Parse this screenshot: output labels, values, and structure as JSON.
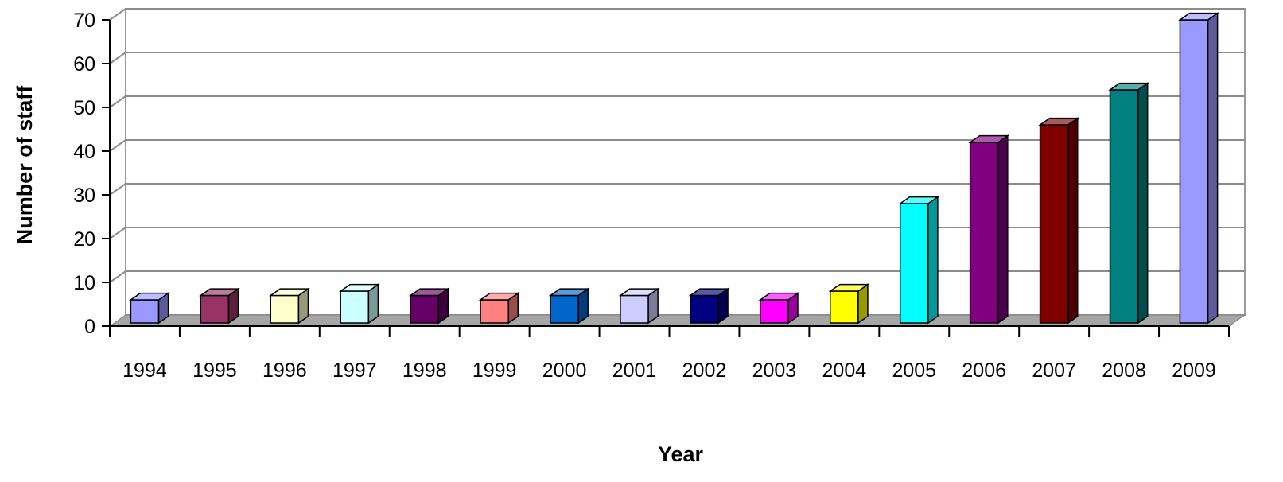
{
  "chart_data": {
    "type": "bar",
    "title": "",
    "xlabel": "Year",
    "ylabel": "Number of staff",
    "categories": [
      "1994",
      "1995",
      "1996",
      "1997",
      "1998",
      "1999",
      "2000",
      "2001",
      "2002",
      "2003",
      "2004",
      "2005",
      "2006",
      "2007",
      "2008",
      "2009"
    ],
    "values": [
      6,
      7,
      7,
      8,
      7,
      6,
      7,
      7,
      7,
      6,
      8,
      28,
      42,
      46,
      54,
      70
    ],
    "colors": [
      "#9999ff",
      "#993366",
      "#ffffcc",
      "#ccffff",
      "#660066",
      "#ff8080",
      "#0066cc",
      "#ccccff",
      "#000080",
      "#ff00ff",
      "#ffff00",
      "#00ffff",
      "#800080",
      "#800000",
      "#008080",
      "#9999ff"
    ],
    "ylim": [
      0,
      70
    ],
    "yticks": [
      0,
      10,
      20,
      30,
      40,
      50,
      60,
      70
    ],
    "grid": true,
    "legend": "none",
    "style": "3d"
  }
}
